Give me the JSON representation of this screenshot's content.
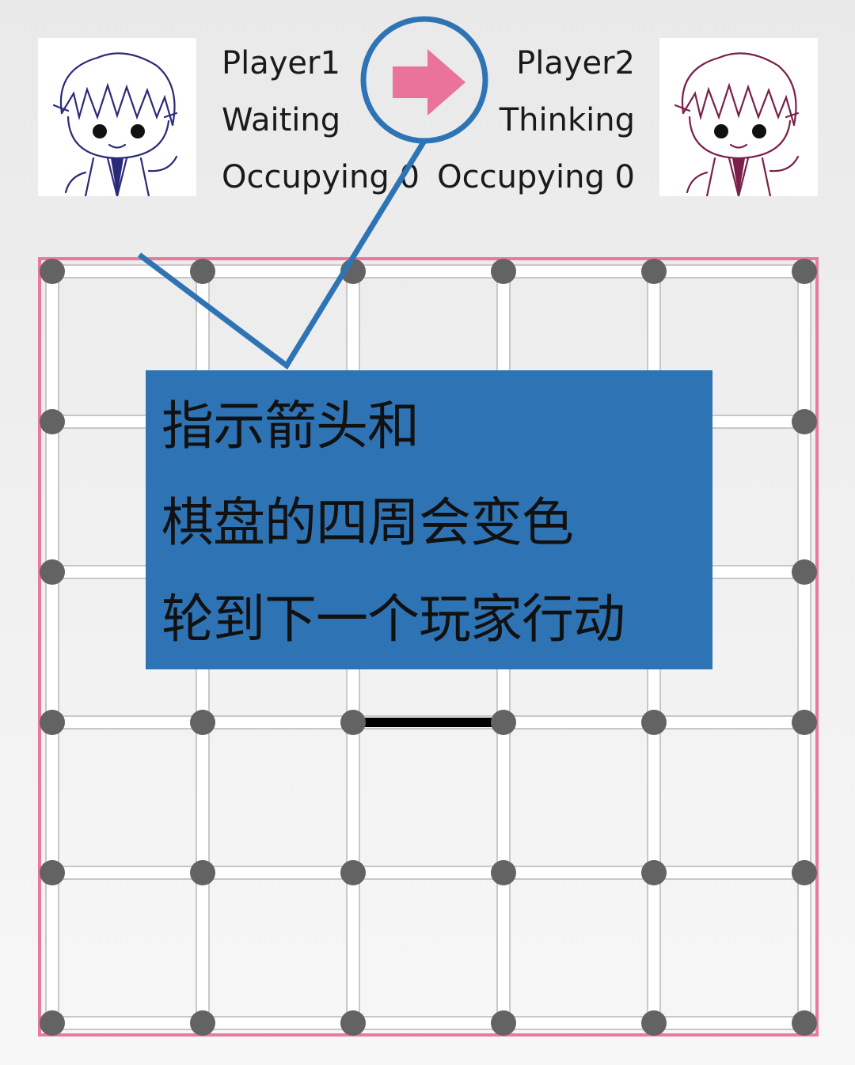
{
  "players": [
    {
      "name": "Player1",
      "status": "Waiting",
      "occupying": "Occupying 0",
      "color": "#2a2a7a"
    },
    {
      "name": "Player2",
      "status": "Thinking",
      "occupying": "Occupying 0",
      "color": "#7a1f4a"
    }
  ],
  "turn_indicator": {
    "icon": "right-arrow-icon",
    "color": "#e9739b",
    "pointing_to": "Player2"
  },
  "board": {
    "dots_per_side": 6,
    "border_color": "#e97a9e",
    "dot_color": "#636363",
    "drawn_lines": [
      {
        "from": [
          3,
          2
        ],
        "to": [
          3,
          3
        ]
      }
    ]
  },
  "annotation": {
    "lines": [
      "指示箭头和",
      "棋盘的四周会变色",
      "轮到下一个玩家行动"
    ],
    "box_color": "#2e74b5",
    "outline_color": "#2e74b5"
  }
}
